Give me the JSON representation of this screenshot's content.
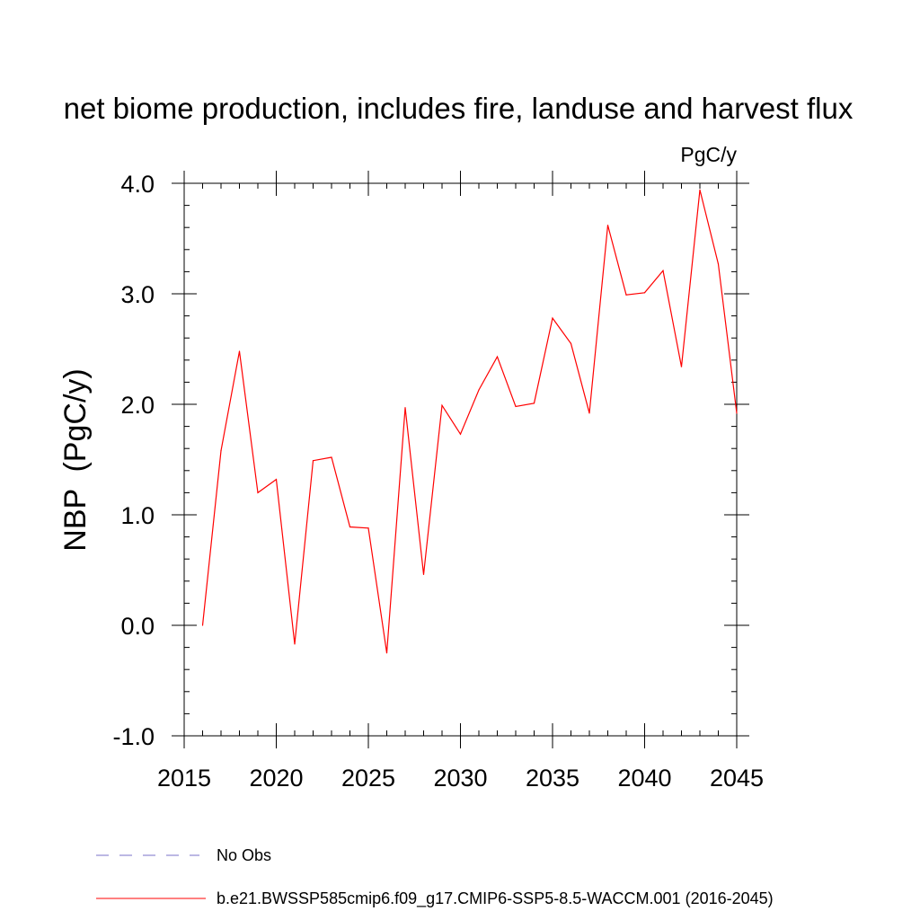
{
  "chart_data": {
    "type": "line",
    "title": "net biome production, includes fire, landuse and harvest flux",
    "units_label": "PgC/y",
    "ylabel": "NBP  (PgC/y)",
    "xlabel": "",
    "xlim": [
      2015,
      2045
    ],
    "ylim": [
      -1.0,
      4.0
    ],
    "x_ticks": [
      2015,
      2020,
      2025,
      2030,
      2035,
      2040,
      2045
    ],
    "x_tick_labels": [
      "2015",
      "2020",
      "2025",
      "2030",
      "2035",
      "2040",
      "2045"
    ],
    "y_ticks": [
      -1.0,
      0.0,
      1.0,
      2.0,
      3.0,
      4.0
    ],
    "y_tick_labels": [
      "-1.0",
      "0.0",
      "1.0",
      "2.0",
      "3.0",
      "4.0"
    ],
    "grid": false,
    "series": [
      {
        "name": "b.e21.BWSSP585cmip6.f09_g17.CMIP6-SSP5-8.5-WACCM.001 (2016-2045)",
        "color": "#ff0000",
        "style": "solid",
        "x": [
          2016,
          2017,
          2018,
          2019,
          2020,
          2021,
          2022,
          2023,
          2024,
          2025,
          2026,
          2027,
          2028,
          2029,
          2030,
          2031,
          2032,
          2033,
          2034,
          2035,
          2036,
          2037,
          2038,
          2039,
          2040,
          2041,
          2042,
          2043,
          2044,
          2045
        ],
        "values": [
          0.0,
          1.58,
          2.48,
          1.2,
          1.32,
          -0.17,
          1.49,
          1.52,
          0.89,
          0.88,
          -0.25,
          1.97,
          0.46,
          1.99,
          1.73,
          2.13,
          2.43,
          1.98,
          2.01,
          2.78,
          2.55,
          1.92,
          3.62,
          2.99,
          3.01,
          3.21,
          2.34,
          3.94,
          3.27,
          1.92
        ]
      }
    ],
    "legend": {
      "placement": "bottom",
      "entries": [
        {
          "label": "No Obs",
          "color": "#7a70c8",
          "style": "dashed"
        },
        {
          "label": "b.e21.BWSSP585cmip6.f09_g17.CMIP6-SSP5-8.5-WACCM.001 (2016-2045)",
          "color": "#ff0000",
          "style": "solid"
        }
      ]
    }
  }
}
